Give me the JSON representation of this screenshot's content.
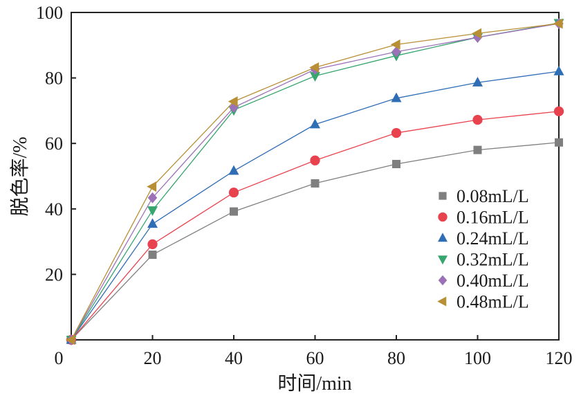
{
  "chart_data": {
    "type": "line",
    "title": "",
    "xlabel": "时间/min",
    "ylabel": "脱色率/%",
    "xlim": [
      0,
      120
    ],
    "ylim": [
      0,
      100
    ],
    "x_ticks": [
      "0",
      "20",
      "40",
      "60",
      "80",
      "100",
      "120"
    ],
    "y_ticks": [
      "20",
      "40",
      "60",
      "80",
      "100"
    ],
    "x": [
      0,
      20,
      40,
      60,
      80,
      100,
      120
    ],
    "legend_position": "right-middle",
    "series": [
      {
        "name": "0.08mL/L",
        "marker": "square",
        "color": "#7f7f7f",
        "values": [
          0,
          26,
          39.2,
          47.8,
          53.7,
          58,
          60.3
        ]
      },
      {
        "name": "0.16mL/L",
        "marker": "circle",
        "color": "#e8424e",
        "values": [
          0,
          29.2,
          45,
          54.8,
          63.2,
          67.2,
          69.8
        ]
      },
      {
        "name": "0.24mL/L",
        "marker": "triangle-up",
        "color": "#2f6db5",
        "values": [
          0,
          35.4,
          51.6,
          65.8,
          73.8,
          78.6,
          82
        ]
      },
      {
        "name": "0.32mL/L",
        "marker": "triangle-down",
        "color": "#36a56e",
        "values": [
          0,
          39.6,
          70.2,
          80.6,
          86.8,
          92.4,
          96.8
        ]
      },
      {
        "name": "0.40mL/L",
        "marker": "diamond",
        "color": "#9b72b7",
        "values": [
          0,
          43.4,
          71,
          82.6,
          88,
          92.4,
          96.6
        ]
      },
      {
        "name": "0.48mL/L",
        "marker": "triangle-left",
        "color": "#b88f35",
        "values": [
          0,
          46.8,
          72.8,
          83.2,
          90.2,
          93.6,
          96.6
        ]
      }
    ]
  }
}
